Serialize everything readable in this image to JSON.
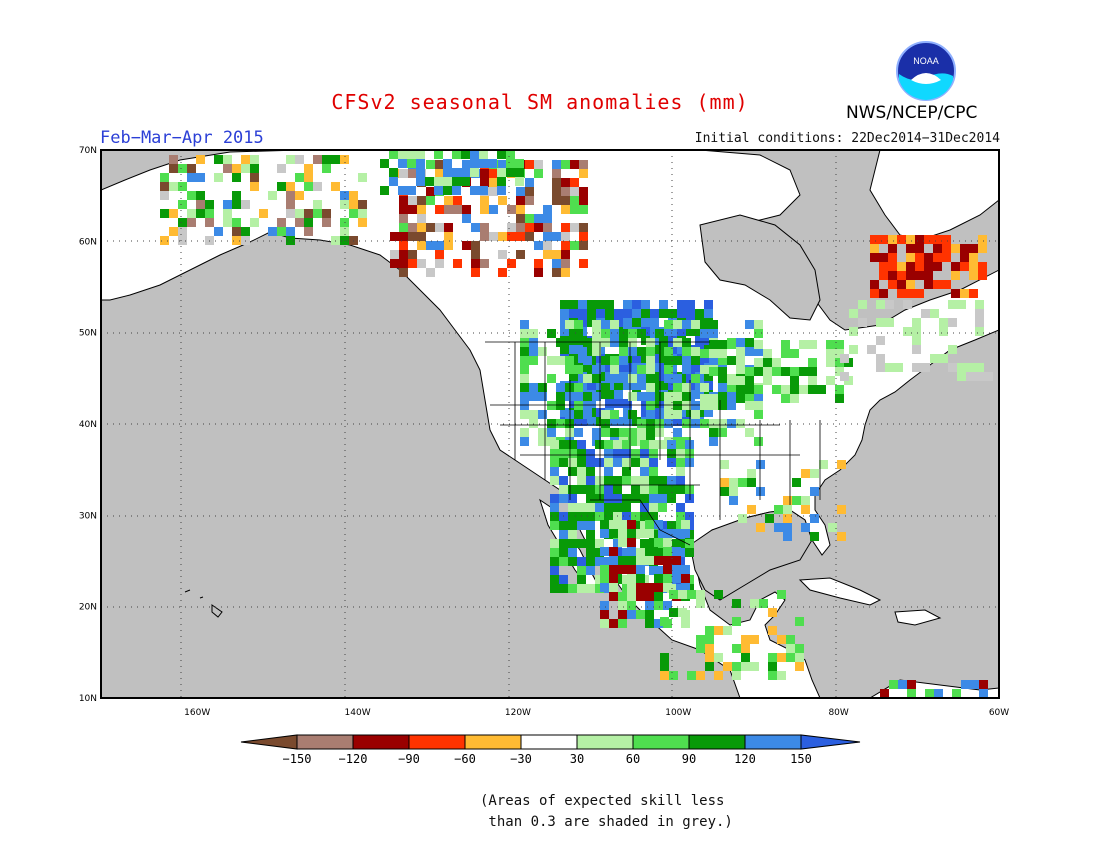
{
  "header": {
    "title": "CFSv2 seasonal SM anomalies (mm)",
    "period": "Feb−Mar−Apr 2015",
    "initial_conditions": "Initial conditions: 22Dec2014−31Dec2014",
    "agency": "NWS/NCEP/CPC",
    "logo_text": "NOAA"
  },
  "map": {
    "region": "North America",
    "lon_range": [
      -172,
      -60
    ],
    "lat_range": [
      10,
      70
    ],
    "y_ticks": [
      {
        "lat": 70,
        "label": "70N"
      },
      {
        "lat": 60,
        "label": "60N"
      },
      {
        "lat": 50,
        "label": "50N"
      },
      {
        "lat": 40,
        "label": "40N"
      },
      {
        "lat": 30,
        "label": "30N"
      },
      {
        "lat": 20,
        "label": "20N"
      },
      {
        "lat": 10,
        "label": "10N"
      }
    ],
    "x_ticks": [
      {
        "lon": -160,
        "label": "160W"
      },
      {
        "lon": -140,
        "label": "140W"
      },
      {
        "lon": -120,
        "label": "120W"
      },
      {
        "lon": -100,
        "label": "100W"
      },
      {
        "lon": -80,
        "label": "80W"
      },
      {
        "lon": -60,
        "label": "60W"
      }
    ],
    "grid": "dotted",
    "ocean_color": "#c0c0c0",
    "land_color": "#ffffff"
  },
  "colorbar": {
    "labels": [
      "−150",
      "−120",
      "−90",
      "−60",
      "−30",
      "30",
      "60",
      "90",
      "120",
      "150"
    ],
    "colors": [
      "#7a4a2e",
      "#a97d71",
      "#9a0000",
      "#ff3300",
      "#ffbb33",
      "#ffffff",
      "#b5f0a5",
      "#4fde4f",
      "#089a08",
      "#3c8ae6",
      "#2b5fe0"
    ]
  },
  "footnote": "(Areas of expected skill less\n than 0.3 are shaded in grey.)"
}
